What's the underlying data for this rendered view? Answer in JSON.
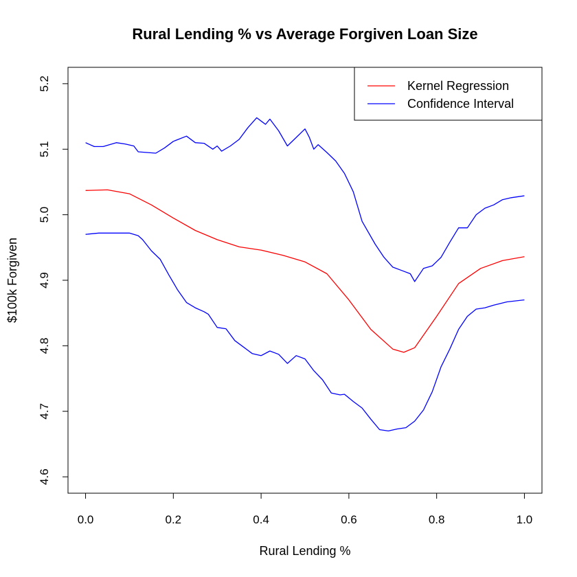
{
  "chart_data": {
    "type": "line",
    "title": "Rural Lending % vs Average Forgiven Loan Size",
    "xlabel": "Rural Lending %",
    "ylabel": "$100k Forgiven",
    "xlim": [
      -0.04,
      1.04
    ],
    "ylim": [
      4.575,
      5.225
    ],
    "x_ticks": [
      0.0,
      0.2,
      0.4,
      0.6,
      0.8,
      1.0
    ],
    "x_tick_labels": [
      "0.0",
      "0.2",
      "0.4",
      "0.6",
      "0.8",
      "1.0"
    ],
    "y_ticks": [
      4.6,
      4.7,
      4.8,
      4.9,
      5.0,
      5.1,
      5.2
    ],
    "y_tick_labels": [
      "4.6",
      "4.7",
      "4.8",
      "4.9",
      "5.0",
      "5.1",
      "5.2"
    ],
    "grid": false,
    "legend": {
      "position": "top-right",
      "entries": [
        {
          "label": "Kernel Regression",
          "color": "#ff0000"
        },
        {
          "label": "Confidence Interval",
          "color": "#0000ff"
        }
      ]
    },
    "series": [
      {
        "role": "fit",
        "color": "#ff0000",
        "points": [
          [
            0.0,
            5.037
          ],
          [
            0.05,
            5.038
          ],
          [
            0.1,
            5.032
          ],
          [
            0.15,
            5.015
          ],
          [
            0.2,
            4.995
          ],
          [
            0.25,
            4.976
          ],
          [
            0.3,
            4.962
          ],
          [
            0.35,
            4.951
          ],
          [
            0.4,
            4.946
          ],
          [
            0.45,
            4.938
          ],
          [
            0.5,
            4.928
          ],
          [
            0.55,
            4.91
          ],
          [
            0.6,
            4.87
          ],
          [
            0.65,
            4.825
          ],
          [
            0.7,
            4.795
          ],
          [
            0.725,
            4.79
          ],
          [
            0.75,
            4.797
          ],
          [
            0.8,
            4.845
          ],
          [
            0.85,
            4.895
          ],
          [
            0.9,
            4.918
          ],
          [
            0.95,
            4.93
          ],
          [
            1.0,
            4.936
          ]
        ]
      },
      {
        "role": "upper",
        "color": "#0000ff",
        "points": [
          [
            0.0,
            5.11
          ],
          [
            0.02,
            5.104
          ],
          [
            0.04,
            5.104
          ],
          [
            0.06,
            5.108
          ],
          [
            0.07,
            5.11
          ],
          [
            0.09,
            5.108
          ],
          [
            0.11,
            5.105
          ],
          [
            0.12,
            5.096
          ],
          [
            0.14,
            5.095
          ],
          [
            0.16,
            5.094
          ],
          [
            0.18,
            5.102
          ],
          [
            0.2,
            5.112
          ],
          [
            0.23,
            5.12
          ],
          [
            0.25,
            5.11
          ],
          [
            0.27,
            5.109
          ],
          [
            0.29,
            5.1
          ],
          [
            0.3,
            5.105
          ],
          [
            0.31,
            5.097
          ],
          [
            0.33,
            5.105
          ],
          [
            0.35,
            5.115
          ],
          [
            0.37,
            5.133
          ],
          [
            0.39,
            5.148
          ],
          [
            0.41,
            5.138
          ],
          [
            0.42,
            5.146
          ],
          [
            0.44,
            5.128
          ],
          [
            0.46,
            5.105
          ],
          [
            0.48,
            5.118
          ],
          [
            0.5,
            5.131
          ],
          [
            0.51,
            5.118
          ],
          [
            0.52,
            5.1
          ],
          [
            0.53,
            5.107
          ],
          [
            0.55,
            5.095
          ],
          [
            0.57,
            5.082
          ],
          [
            0.59,
            5.063
          ],
          [
            0.61,
            5.035
          ],
          [
            0.63,
            4.99
          ],
          [
            0.66,
            4.955
          ],
          [
            0.68,
            4.935
          ],
          [
            0.7,
            4.92
          ],
          [
            0.72,
            4.915
          ],
          [
            0.74,
            4.91
          ],
          [
            0.75,
            4.898
          ],
          [
            0.77,
            4.918
          ],
          [
            0.79,
            4.922
          ],
          [
            0.81,
            4.935
          ],
          [
            0.83,
            4.958
          ],
          [
            0.85,
            4.98
          ],
          [
            0.87,
            4.98
          ],
          [
            0.89,
            5.0
          ],
          [
            0.91,
            5.01
          ],
          [
            0.93,
            5.015
          ],
          [
            0.95,
            5.023
          ],
          [
            0.97,
            5.026
          ],
          [
            1.0,
            5.029
          ]
        ]
      },
      {
        "role": "lower",
        "color": "#0000ff",
        "points": [
          [
            0.0,
            4.97
          ],
          [
            0.03,
            4.972
          ],
          [
            0.06,
            4.972
          ],
          [
            0.08,
            4.972
          ],
          [
            0.1,
            4.972
          ],
          [
            0.12,
            4.968
          ],
          [
            0.13,
            4.962
          ],
          [
            0.15,
            4.945
          ],
          [
            0.17,
            4.932
          ],
          [
            0.19,
            4.908
          ],
          [
            0.21,
            4.885
          ],
          [
            0.23,
            4.866
          ],
          [
            0.25,
            4.858
          ],
          [
            0.27,
            4.852
          ],
          [
            0.28,
            4.848
          ],
          [
            0.3,
            4.828
          ],
          [
            0.32,
            4.826
          ],
          [
            0.34,
            4.808
          ],
          [
            0.36,
            4.798
          ],
          [
            0.38,
            4.788
          ],
          [
            0.4,
            4.785
          ],
          [
            0.42,
            4.792
          ],
          [
            0.44,
            4.787
          ],
          [
            0.46,
            4.773
          ],
          [
            0.48,
            4.785
          ],
          [
            0.5,
            4.78
          ],
          [
            0.52,
            4.762
          ],
          [
            0.54,
            4.748
          ],
          [
            0.56,
            4.728
          ],
          [
            0.58,
            4.725
          ],
          [
            0.59,
            4.726
          ],
          [
            0.61,
            4.715
          ],
          [
            0.63,
            4.705
          ],
          [
            0.65,
            4.688
          ],
          [
            0.67,
            4.672
          ],
          [
            0.69,
            4.67
          ],
          [
            0.71,
            4.673
          ],
          [
            0.73,
            4.675
          ],
          [
            0.75,
            4.685
          ],
          [
            0.77,
            4.702
          ],
          [
            0.79,
            4.73
          ],
          [
            0.81,
            4.768
          ],
          [
            0.83,
            4.795
          ],
          [
            0.85,
            4.825
          ],
          [
            0.87,
            4.845
          ],
          [
            0.89,
            4.856
          ],
          [
            0.91,
            4.858
          ],
          [
            0.93,
            4.862
          ],
          [
            0.96,
            4.867
          ],
          [
            1.0,
            4.87
          ]
        ]
      }
    ]
  }
}
